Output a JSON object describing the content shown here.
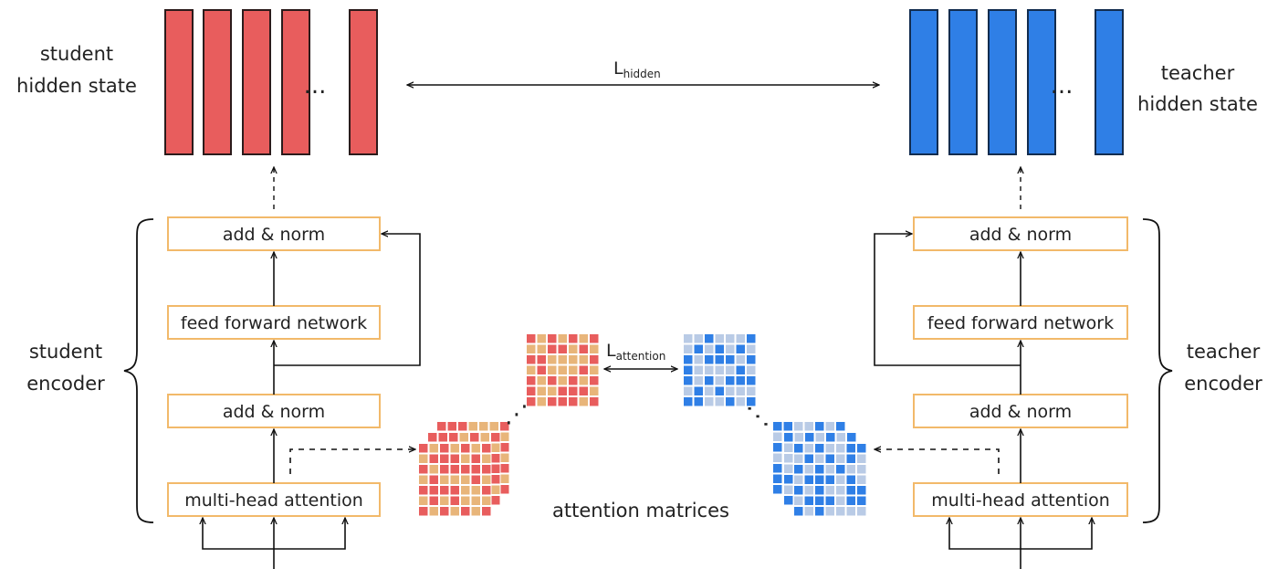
{
  "colors": {
    "student": "#e85d5d",
    "student_dark": "#2b1b1b",
    "teacher": "#2f7fe6",
    "teacher_dark": "#122c4f",
    "box_border": "#f2b96a",
    "student_light": "#e8b57a",
    "teacher_light": "#b9cbe6",
    "line": "#111111"
  },
  "student": {
    "hidden_state_label": [
      "student",
      "hidden state"
    ],
    "encoder_label": [
      "student",
      "encoder"
    ],
    "blocks": {
      "add_norm_top": "add & norm",
      "feed_forward": "feed forward network",
      "add_norm_bottom": "add & norm",
      "attention": "multi-head attention"
    },
    "ellipsis": "..."
  },
  "teacher": {
    "hidden_state_label": [
      "teacher",
      "hidden state"
    ],
    "encoder_label": [
      "teacher",
      "encoder"
    ],
    "blocks": {
      "add_norm_top": "add & norm",
      "feed_forward": "feed forward network",
      "add_norm_bottom": "add & norm",
      "attention": "multi-head attention"
    },
    "ellipsis": "..."
  },
  "losses": {
    "hidden": {
      "base": "L",
      "sub": "hidden"
    },
    "attention": {
      "base": "L",
      "sub": "attention"
    }
  },
  "attention_matrices_label": "attention matrices",
  "matrix_ellipsis": "⋰"
}
